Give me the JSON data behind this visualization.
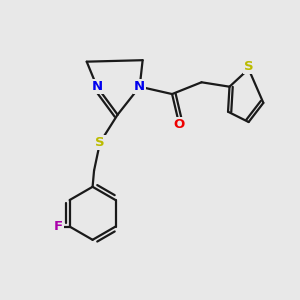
{
  "background_color": "#e8e8e8",
  "line_color": "#1a1a1a",
  "bond_lw": 1.6,
  "N_color": "#0000ee",
  "O_color": "#ee0000",
  "S_color": "#bbbb00",
  "F_color": "#aa00aa",
  "figsize": [
    3.0,
    3.0
  ],
  "dpi": 100,
  "xlim": [
    0,
    10
  ],
  "ylim": [
    0,
    10
  ]
}
